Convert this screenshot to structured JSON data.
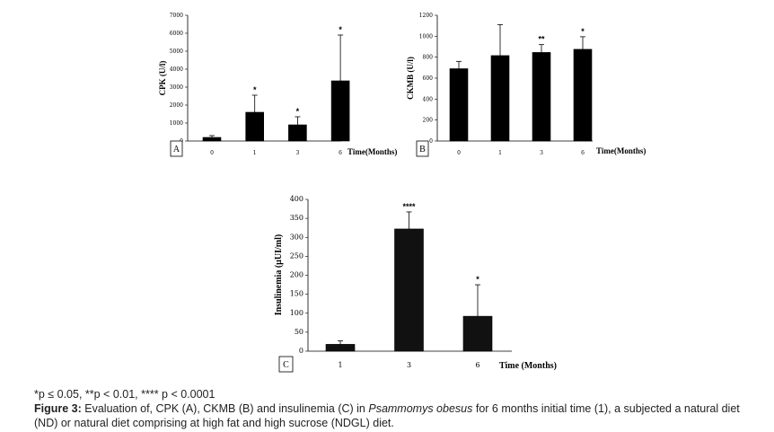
{
  "chart_data": [
    {
      "panel": "A",
      "type": "bar",
      "ylabel": "CPK (U/l)",
      "xlabel": "Time(Months)",
      "categories": [
        "0",
        "1",
        "3",
        "6"
      ],
      "values": [
        200,
        1600,
        900,
        3350
      ],
      "errors": [
        100,
        950,
        450,
        2550
      ],
      "significance": [
        "",
        "*",
        "*",
        "*"
      ],
      "ylim": [
        0,
        7000
      ],
      "yticks": [
        0,
        1000,
        2000,
        3000,
        4000,
        5000,
        6000,
        7000
      ],
      "bar_color": "#000000"
    },
    {
      "panel": "B",
      "type": "bar",
      "ylabel": "CKMB (U/l)",
      "xlabel": "Time(Months)",
      "categories": [
        "0",
        "1",
        "3",
        "6"
      ],
      "values": [
        690,
        815,
        845,
        875
      ],
      "errors": [
        70,
        295,
        75,
        120
      ],
      "significance": [
        "",
        "",
        "**",
        "*"
      ],
      "ylim": [
        0,
        1200
      ],
      "yticks": [
        0,
        200,
        400,
        600,
        800,
        1000,
        1200
      ],
      "bar_color": "#000000"
    },
    {
      "panel": "C",
      "type": "bar",
      "ylabel": "Insulinemia (µUI/ml)",
      "xlabel": "Time (Months)",
      "categories": [
        "1",
        "3",
        "6"
      ],
      "values": [
        18,
        322,
        92
      ],
      "errors": [
        9,
        45,
        83
      ],
      "significance": [
        "",
        "****",
        "*"
      ],
      "ylim": [
        0,
        400
      ],
      "yticks": [
        0,
        50,
        100,
        150,
        200,
        250,
        300,
        350,
        400
      ],
      "bar_color": "#111111"
    }
  ],
  "caption": {
    "significance_note": "*p ≤ 0.05, **p < 0.01, **** p < 0.0001",
    "figure_label": "Figure 3:",
    "text_before_species": " Evaluation of, CPK (A), CKMB (B) and insulinemia (C) in ",
    "species": "Psammomys obesus",
    "text_after_species": " for 6 months initial time (1), a subjected a natural diet (ND) or natural diet comprising at high fat and high sucrose (NDGL) diet."
  }
}
